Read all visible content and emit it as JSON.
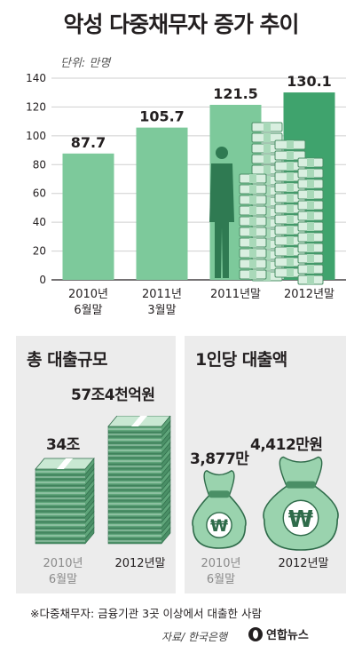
{
  "title": "악성 다중채무자 증가 추이",
  "unit_label": "단위: 만명",
  "colors": {
    "bar_light": "#7dc99b",
    "bar_dark": "#3fa36d",
    "grid": "#cfcfcf",
    "money_dark": "#4a8f66",
    "money_light": "#9ad3ae"
  },
  "chart_data": {
    "type": "bar",
    "categories": [
      "2010년\n6월말",
      "2011년\n3월말",
      "2011년말",
      "2012년말"
    ],
    "values": [
      87.7,
      105.7,
      121.5,
      130.1
    ],
    "value_labels": [
      "87.7",
      "105.7",
      "121.5",
      "130.1"
    ],
    "ylim": [
      0,
      140
    ],
    "yticks": [
      0,
      20,
      40,
      60,
      80,
      100,
      120,
      140
    ],
    "grid": true
  },
  "total_loans": {
    "title": "총 대출규모",
    "value_2010": "34조",
    "value_2012": "57조4천억원",
    "label_2010": "2010년\n6월말",
    "label_2012": "2012년말"
  },
  "per_person": {
    "title": "1인당 대출액",
    "value_2010": "3,877만",
    "value_2012": "4,412만원",
    "label_2010": "2010년\n6월말",
    "label_2012": "2012년말",
    "won_symbol": "₩"
  },
  "footnote": "※다중채무자: 금융기관 3곳 이상에서 대출한 사람",
  "source": "자료/ 한국은행",
  "logo": "연합뉴스"
}
